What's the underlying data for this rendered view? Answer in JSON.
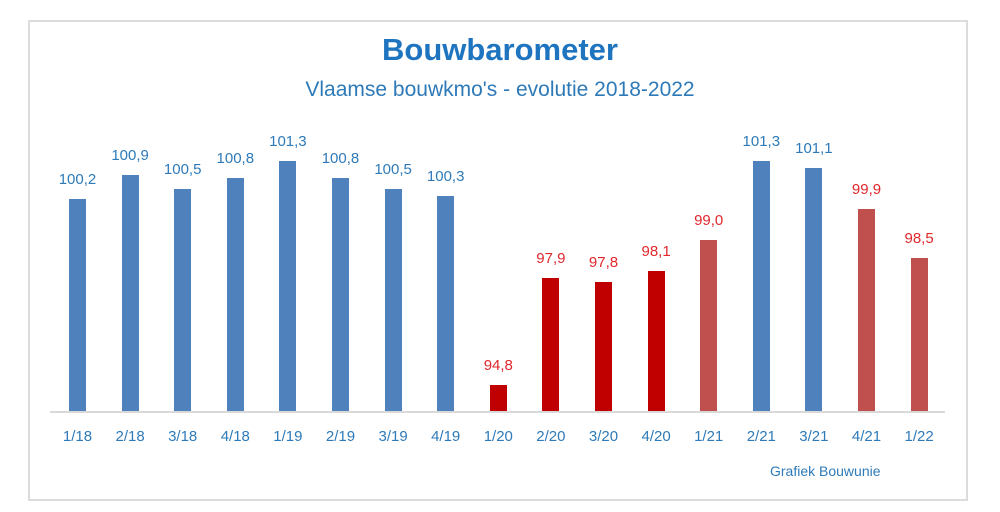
{
  "chart_data": {
    "type": "bar",
    "title": "Bouwbarometer",
    "subtitle": "Vlaamse bouwkmo's - evolutie 2018-2022",
    "xlabel": "",
    "ylabel": "",
    "categories": [
      "1/18",
      "2/18",
      "3/18",
      "4/18",
      "1/19",
      "2/19",
      "3/19",
      "4/19",
      "1/20",
      "2/20",
      "3/20",
      "4/20",
      "1/21",
      "2/21",
      "3/21",
      "4/21",
      "1/22"
    ],
    "values": [
      100.2,
      100.9,
      100.5,
      100.8,
      101.3,
      100.8,
      100.5,
      100.3,
      94.8,
      97.9,
      97.8,
      98.1,
      99.0,
      101.3,
      101.1,
      99.9,
      98.5
    ],
    "value_labels": [
      "100,2",
      "100,9",
      "100,5",
      "100,8",
      "101,3",
      "100,8",
      "100,5",
      "100,3",
      "94,8",
      "97,9",
      "97,8",
      "98,1",
      "99,0",
      "101,3",
      "101,1",
      "99,9",
      "98,5"
    ],
    "bar_colors": [
      "#4f81bd",
      "#4f81bd",
      "#4f81bd",
      "#4f81bd",
      "#4f81bd",
      "#4f81bd",
      "#4f81bd",
      "#4f81bd",
      "#c00000",
      "#c00000",
      "#c00000",
      "#c00000",
      "#c0504d",
      "#4f81bd",
      "#4f81bd",
      "#c0504d",
      "#c0504d"
    ],
    "label_colors": [
      "#2e7ab8",
      "#2e7ab8",
      "#2e7ab8",
      "#2e7ab8",
      "#2e7ab8",
      "#2e7ab8",
      "#2e7ab8",
      "#2e7ab8",
      "#e0282d",
      "#e0282d",
      "#e0282d",
      "#e0282d",
      "#e0282d",
      "#2e7ab8",
      "#2e7ab8",
      "#e0282d",
      "#e0282d"
    ],
    "ylim": [
      94.05,
      101.6
    ],
    "grid": false,
    "legend": null,
    "annotations": [
      "Grafiek Bouwunie"
    ]
  },
  "source_note": "Grafiek Bouwunie"
}
